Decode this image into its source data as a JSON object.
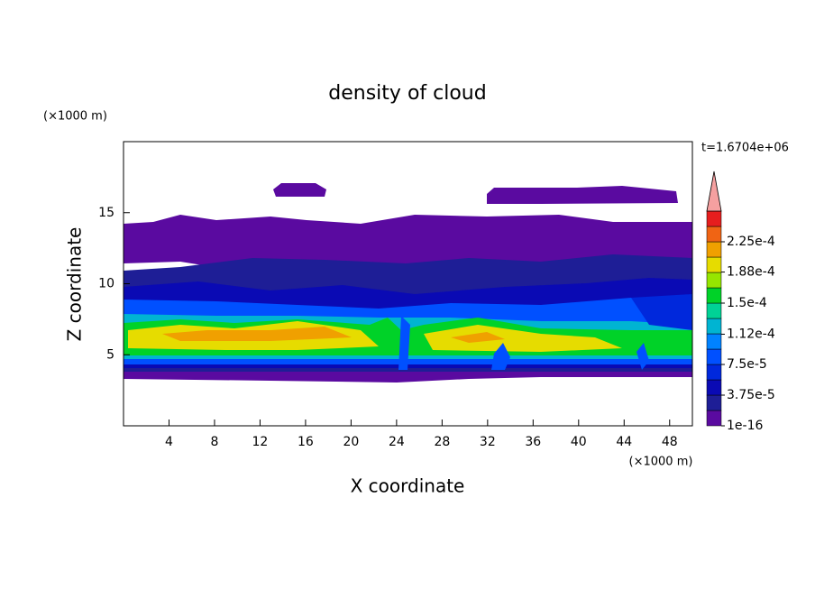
{
  "chart_data": {
    "type": "contour",
    "title": "density of cloud",
    "xlabel": "X coordinate",
    "ylabel": "Z coordinate",
    "x_unit": "(×1000 m)",
    "y_unit": "(×1000 m)",
    "time_label": "t=1.6704e+06",
    "xlim": [
      0,
      50
    ],
    "xticks": [
      4,
      8,
      12,
      16,
      20,
      24,
      28,
      32,
      36,
      40,
      44,
      48
    ],
    "ylim": [
      0,
      20
    ],
    "yticks": [
      5,
      10,
      15
    ],
    "colorbar": {
      "colors": [
        "#5a0aa0",
        "#1e1e96",
        "#0a0ab4",
        "#0028dc",
        "#0050ff",
        "#0082ff",
        "#00b4d2",
        "#00d296",
        "#00d228",
        "#96e600",
        "#e6dc00",
        "#f0a000",
        "#f06414",
        "#e61e1e"
      ],
      "extend_color": "#f5a0a0",
      "ticks": [
        1e-16,
        {
          "value": 3.75e-05,
          "label": "3.75e-5"
        },
        {
          "value": 7.5e-05,
          "label": "7.5e-5"
        },
        {
          "value": 0.000112,
          "label": "1.12e-4"
        },
        {
          "value": 0.00015,
          "label": "1.5e-4"
        },
        {
          "value": 0.000188,
          "label": "1.88e-4"
        },
        {
          "value": 0.000225,
          "label": "2.25e-4"
        }
      ]
    }
  }
}
